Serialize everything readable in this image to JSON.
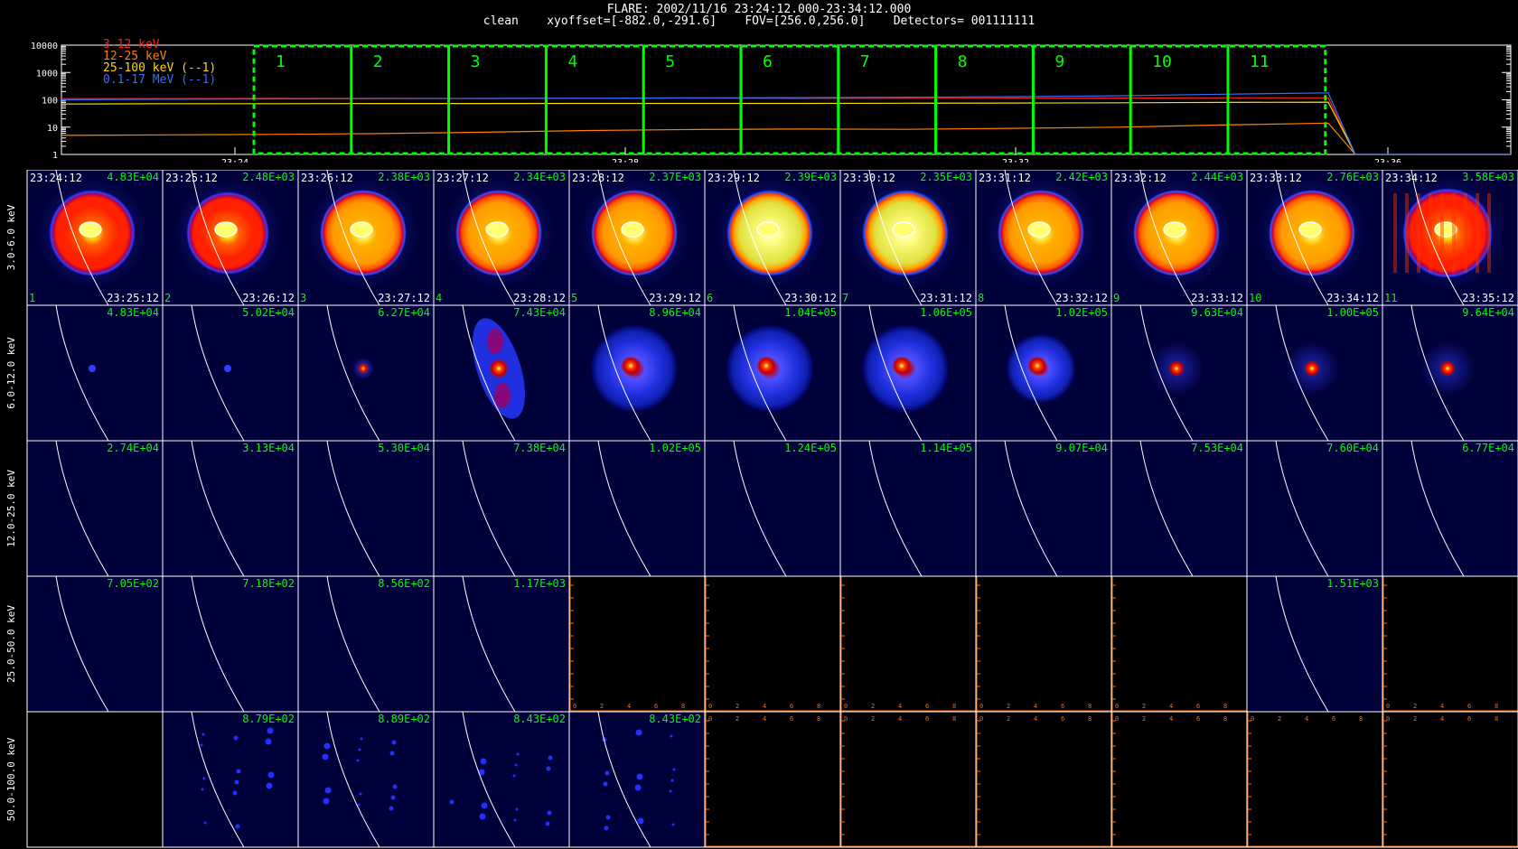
{
  "header": {
    "title": "FLARE: 2002/11/16 23:24:12.000-23:34:12.000",
    "subtitle": "clean    xyoffset=[-882.0,-291.6]    FOV=[256.0,256.0]    Detectors= 001111111"
  },
  "chart_data": {
    "type": "line",
    "y_scale": "log",
    "ylim": [
      1,
      10000
    ],
    "y_ticks": [
      "10000",
      "1000",
      "100",
      "10",
      "1"
    ],
    "x_ticks": [
      "23:24",
      "23:28",
      "23:32",
      "23:36"
    ],
    "legend_position": "top-left",
    "series": [
      {
        "name": "3-12 keV",
        "color": "#ff2020",
        "values": [
          110,
          110,
          112,
          113,
          112,
          114,
          115,
          113,
          114,
          115,
          116,
          118,
          118,
          1
        ]
      },
      {
        "name": "12-25 keV",
        "color": "#ff7f00",
        "values": [
          5,
          5.2,
          5.4,
          5.8,
          6.5,
          7.5,
          8.2,
          8.5,
          8.3,
          9,
          10,
          12,
          14,
          1
        ]
      },
      {
        "name": "25-100 keV (--1)",
        "color": "#ffd700",
        "values": [
          70,
          72,
          72,
          73,
          73,
          74,
          74,
          74,
          75,
          76,
          78,
          80,
          82,
          1
        ]
      },
      {
        "name": "0.1-17 MeV (--1)",
        "color": "#3070ff",
        "values": [
          100,
          105,
          108,
          110,
          112,
          115,
          118,
          120,
          125,
          130,
          140,
          160,
          180,
          1
        ]
      }
    ],
    "intervals": [
      "1",
      "2",
      "3",
      "4",
      "5",
      "6",
      "7",
      "8",
      "9",
      "10",
      "11"
    ],
    "accent_color": "#00ff00"
  },
  "image_grid": {
    "energy_bands": [
      "3.0-6.0 keV",
      "6.0-12.0 keV",
      "12.0-25.0 keV",
      "25.0-50.0 keV",
      "50.0-100.0 keV"
    ],
    "start_times": [
      "23:24:12",
      "23:25:12",
      "23:26:12",
      "23:27:12",
      "23:28:12",
      "23:29:12",
      "23:30:12",
      "23:31:12",
      "23:32:12",
      "23:33:12",
      "23:34:12"
    ],
    "end_times": [
      "23:25:12",
      "23:26:12",
      "23:27:12",
      "23:28:12",
      "23:29:12",
      "23:30:12",
      "23:31:12",
      "23:32:12",
      "23:33:12",
      "23:34:12",
      "23:35:12"
    ],
    "interval_numbers": [
      "1",
      "2",
      "3",
      "4",
      "5",
      "6",
      "7",
      "8",
      "9",
      "10",
      "11"
    ],
    "max_values": [
      [
        "4.83E+04",
        "2.48E+03",
        "2.38E+03",
        "2.34E+03",
        "2.37E+03",
        "2.39E+03",
        "2.35E+03",
        "2.42E+03",
        "2.44E+03",
        "2.76E+03",
        "3.58E+03"
      ],
      [
        "4.83E+04",
        "5.02E+04",
        "6.27E+04",
        "7.43E+04",
        "8.96E+04",
        "1.04E+05",
        "1.06E+05",
        "1.02E+05",
        "9.63E+04",
        "1.00E+05",
        "9.64E+04"
      ],
      [
        "2.74E+04",
        "3.13E+04",
        "5.30E+04",
        "7.38E+04",
        "1.02E+05",
        "1.24E+05",
        "1.14E+05",
        "9.07E+04",
        "7.53E+04",
        "7.60E+04",
        "6.77E+04"
      ],
      [
        "7.05E+02",
        "7.18E+02",
        "8.56E+02",
        "1.17E+03",
        "",
        "",
        "",
        "",
        "",
        "1.51E+03",
        ""
      ],
      [
        "",
        "8.79E+02",
        "8.89E+02",
        "8.43E+02",
        "8.43E+02",
        "",
        "",
        "",
        "",
        "",
        ""
      ]
    ],
    "empty_axis_ticks": [
      "0",
      "2",
      "4",
      "6",
      "8"
    ],
    "colors": {
      "value_text": "#00ff00",
      "empty_axis": "#ff6a00",
      "limb_line": "#ffffff"
    }
  }
}
